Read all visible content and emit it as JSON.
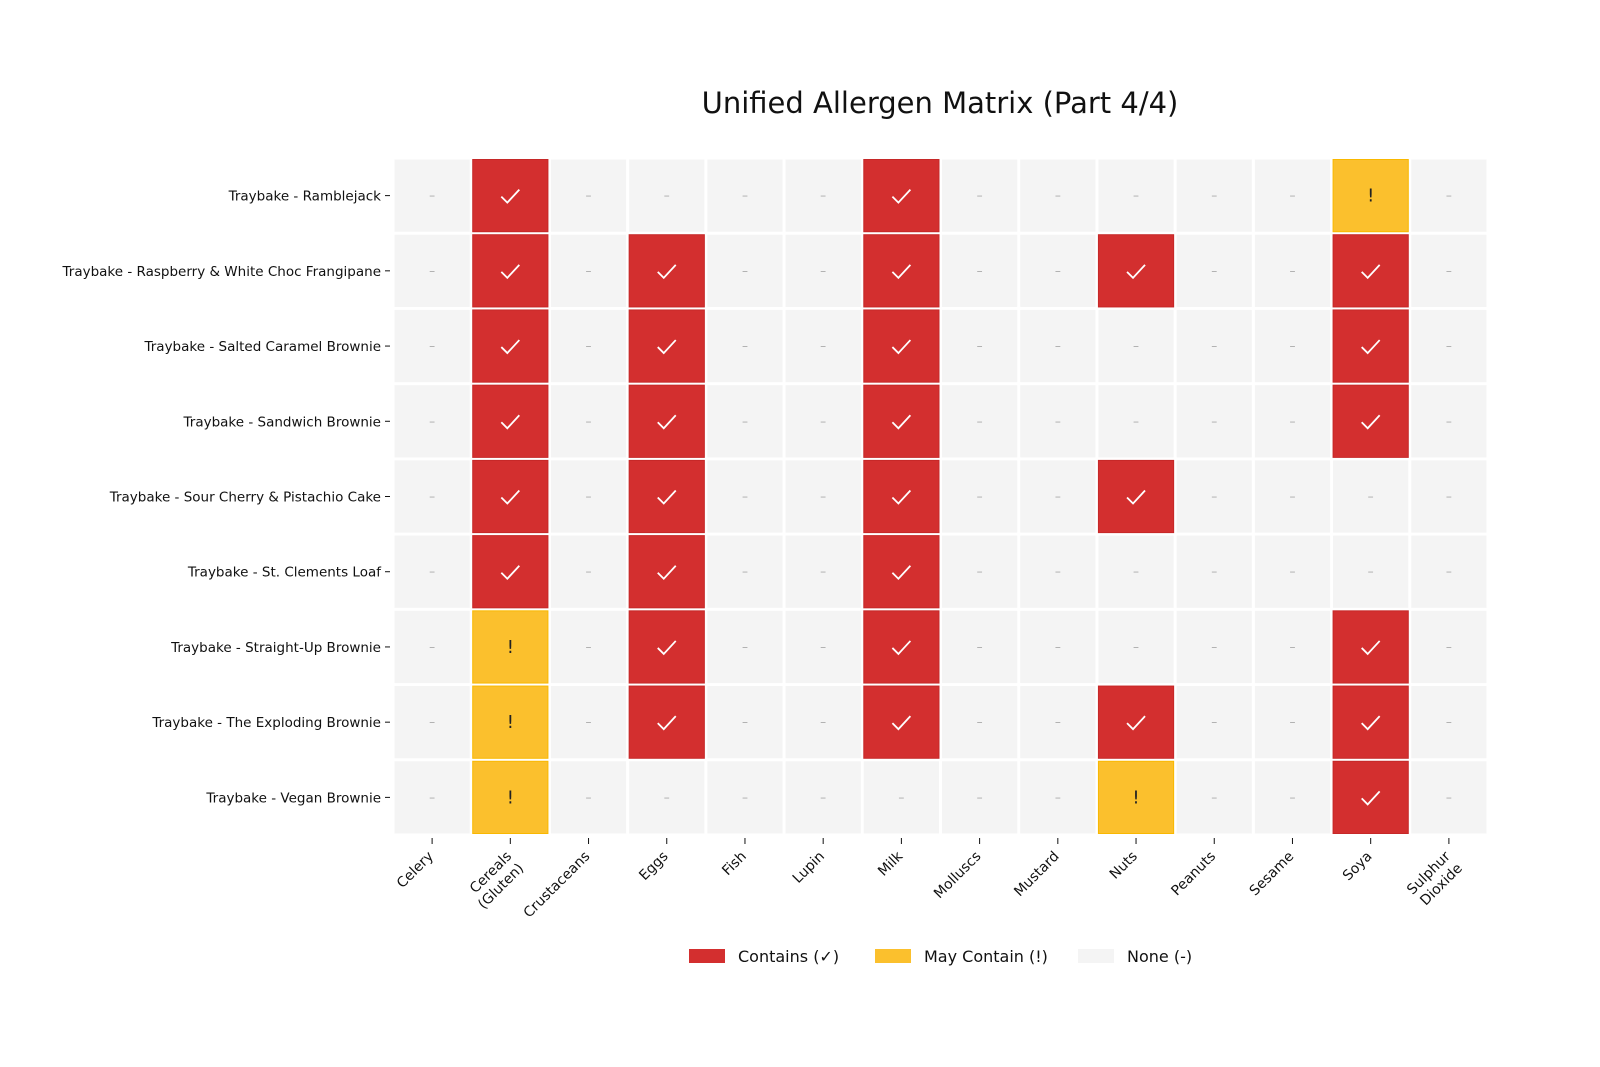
{
  "chart_data": {
    "type": "heatmap",
    "title": "Unified Allergen Matrix (Part 4/4)",
    "columns": [
      "Celery",
      "Cereals\n(Gluten)",
      "Crustaceans",
      "Eggs",
      "Fish",
      "Lupin",
      "Milk",
      "Molluscs",
      "Mustard",
      "Nuts",
      "Peanuts",
      "Sesame",
      "Soya",
      "Sulphur\nDioxide"
    ],
    "rows": [
      "Traybake - Ramblejack",
      "Traybake - Raspberry & White Choc Frangipane",
      "Traybake - Salted Caramel Brownie",
      "Traybake - Sandwich Brownie",
      "Traybake - Sour Cherry & Pistachio Cake",
      "Traybake - St. Clements Loaf",
      "Traybake - Straight-Up Brownie",
      "Traybake - The Exploding Brownie",
      "Traybake - Vegan Brownie"
    ],
    "value_legend": {
      "2": "Contains",
      "1": "May Contain",
      "0": "None"
    },
    "values": [
      [
        0,
        2,
        0,
        0,
        0,
        0,
        2,
        0,
        0,
        0,
        0,
        0,
        1,
        0
      ],
      [
        0,
        2,
        0,
        2,
        0,
        0,
        2,
        0,
        0,
        2,
        0,
        0,
        2,
        0
      ],
      [
        0,
        2,
        0,
        2,
        0,
        0,
        2,
        0,
        0,
        0,
        0,
        0,
        2,
        0
      ],
      [
        0,
        2,
        0,
        2,
        0,
        0,
        2,
        0,
        0,
        0,
        0,
        0,
        2,
        0
      ],
      [
        0,
        2,
        0,
        2,
        0,
        0,
        2,
        0,
        0,
        2,
        0,
        0,
        0,
        0
      ],
      [
        0,
        2,
        0,
        2,
        0,
        0,
        2,
        0,
        0,
        0,
        0,
        0,
        0,
        0
      ],
      [
        0,
        1,
        0,
        2,
        0,
        0,
        2,
        0,
        0,
        0,
        0,
        0,
        2,
        0
      ],
      [
        0,
        1,
        0,
        2,
        0,
        0,
        2,
        0,
        0,
        2,
        0,
        0,
        2,
        0
      ],
      [
        0,
        1,
        0,
        0,
        0,
        0,
        0,
        0,
        0,
        1,
        0,
        0,
        2,
        0
      ]
    ],
    "symbols": {
      "2": "✓",
      "1": "!",
      "0": "–"
    },
    "colors": {
      "2": "#D32F2F",
      "1": "#FBC02D",
      "0": "#F4F4F4"
    },
    "legend": {
      "placement": "bottom-center",
      "items": [
        {
          "label": "Contains (✓)",
          "color": "#D32F2F"
        },
        {
          "label": "May Contain (!)",
          "color": "#FBC02D"
        },
        {
          "label": "None (-)",
          "color": "#F4F4F4"
        }
      ]
    }
  }
}
